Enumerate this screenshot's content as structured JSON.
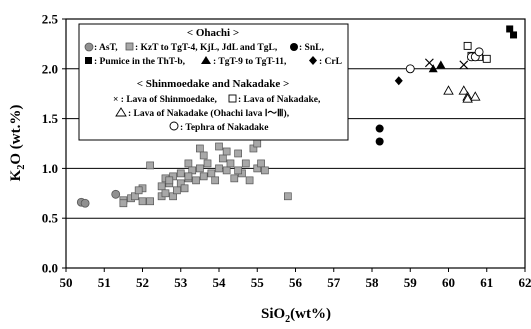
{
  "chart_data": {
    "type": "scatter",
    "xlabel": "SiO2 (wt%)",
    "xlabel_base": "SiO",
    "xlabel_sub": "2",
    "xlabel_rest": "(wt%)",
    "ylabel": "K2O (wt.%)",
    "ylabel_base": "K",
    "ylabel_sub": "2",
    "ylabel_rest": "O (wt.%)",
    "xlim": [
      50,
      62
    ],
    "ylim": [
      0,
      2.5
    ],
    "xticks": [
      "50",
      "51",
      "52",
      "53",
      "54",
      "55",
      "56",
      "57",
      "58",
      "59",
      "60",
      "61",
      "62"
    ],
    "yticks": [
      "0.0",
      "0.5",
      "1.0",
      "1.5",
      "2.0",
      "2.5"
    ],
    "grid": "horizontal",
    "legend": {
      "placement": "top-left",
      "group1_title": "< Ohachi >",
      "group1_lines": [
        ": AsT, ",
        ": KzT to TgT-4, KjL, JdL and TgL, ",
        ": SnL,",
        ": Pumice in the ThT-b, ",
        ": TgT-9 to TgT-11, ",
        ": CrL"
      ],
      "group2_title": "< Shinmoedake and Nakadake >",
      "group2_lines": [
        "× : Lava of Shinmoedake, ",
        ": Lava of Nakadake,",
        ": Lava of Nakadake (Ohachi lava Ⅰ～Ⅲ),",
        ": Tephra of Nakadake"
      ]
    },
    "series": [
      {
        "marker": "gray-circle",
        "points": [
          [
            50.4,
            0.66
          ],
          [
            50.5,
            0.65
          ],
          [
            51.3,
            0.74
          ]
        ]
      },
      {
        "marker": "gray-square",
        "points": [
          [
            51.5,
            0.68
          ],
          [
            51.5,
            0.65
          ],
          [
            51.7,
            0.7
          ],
          [
            51.8,
            0.72
          ],
          [
            52.0,
            0.67
          ],
          [
            52.0,
            0.8
          ],
          [
            51.9,
            0.78
          ],
          [
            52.2,
            0.67
          ],
          [
            52.2,
            1.03
          ],
          [
            52.5,
            0.72
          ],
          [
            52.5,
            0.82
          ],
          [
            52.6,
            0.9
          ],
          [
            52.6,
            0.75
          ],
          [
            52.7,
            0.85
          ],
          [
            52.8,
            0.92
          ],
          [
            52.8,
            0.72
          ],
          [
            52.9,
            0.78
          ],
          [
            53.0,
            0.85
          ],
          [
            53.0,
            0.95
          ],
          [
            53.1,
            0.8
          ],
          [
            53.2,
            0.9
          ],
          [
            53.2,
            1.05
          ],
          [
            53.3,
            0.98
          ],
          [
            53.4,
            0.88
          ],
          [
            53.5,
            1.0
          ],
          [
            53.5,
            1.2
          ],
          [
            53.6,
            0.92
          ],
          [
            53.7,
            1.05
          ],
          [
            53.8,
            0.95
          ],
          [
            53.9,
            0.88
          ],
          [
            54.0,
            1.0
          ],
          [
            54.0,
            1.22
          ],
          [
            54.1,
            1.1
          ],
          [
            54.2,
            0.98
          ],
          [
            54.3,
            1.05
          ],
          [
            54.4,
            0.9
          ],
          [
            54.5,
            1.15
          ],
          [
            54.6,
            0.95
          ],
          [
            54.7,
            1.05
          ],
          [
            54.8,
            0.88
          ],
          [
            54.9,
            1.2
          ],
          [
            55.0,
            1.0
          ],
          [
            55.1,
            1.05
          ],
          [
            55.2,
            0.98
          ],
          [
            55.0,
            1.25
          ],
          [
            53.6,
            1.13
          ],
          [
            54.2,
            1.17
          ],
          [
            55.8,
            0.72
          ],
          [
            52.7,
            0.88
          ],
          [
            53.2,
            0.92
          ],
          [
            54.5,
            0.98
          ]
        ]
      },
      {
        "marker": "black-circle",
        "points": [
          [
            58.2,
            1.4
          ],
          [
            58.2,
            1.27
          ]
        ]
      },
      {
        "marker": "black-square",
        "points": [
          [
            61.6,
            2.4
          ],
          [
            61.7,
            2.34
          ]
        ]
      },
      {
        "marker": "black-triangle",
        "points": [
          [
            59.6,
            2.0
          ],
          [
            59.8,
            2.04
          ]
        ]
      },
      {
        "marker": "black-diamond",
        "points": [
          [
            58.7,
            1.88
          ]
        ]
      },
      {
        "marker": "cross",
        "points": [
          [
            59.5,
            2.06
          ],
          [
            60.4,
            2.04
          ]
        ]
      },
      {
        "marker": "open-square",
        "points": [
          [
            60.5,
            2.23
          ],
          [
            60.6,
            2.13
          ],
          [
            60.8,
            2.12
          ],
          [
            61.0,
            2.1
          ]
        ]
      },
      {
        "marker": "open-triangle",
        "points": [
          [
            60.0,
            1.78
          ],
          [
            60.4,
            1.78
          ],
          [
            60.5,
            1.72
          ],
          [
            60.7,
            1.72
          ],
          [
            60.5,
            1.7
          ]
        ]
      },
      {
        "marker": "open-circle",
        "points": [
          [
            59.0,
            2.0
          ],
          [
            60.6,
            2.12
          ],
          [
            60.7,
            2.12
          ],
          [
            60.8,
            2.17
          ]
        ]
      }
    ]
  }
}
